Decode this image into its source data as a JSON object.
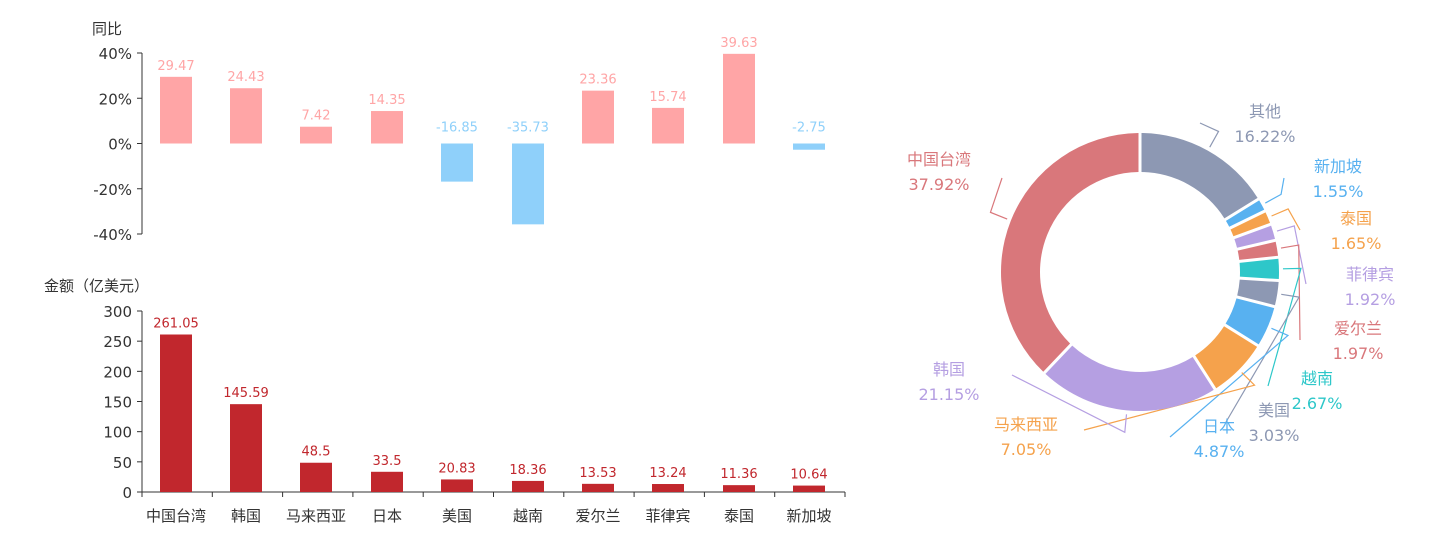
{
  "colors": {
    "pos": "#ffa5a6",
    "neg": "#8fd0fa",
    "bar": "#c1272d",
    "axis": "#333333",
    "label": "#333333"
  },
  "chart_data": [
    {
      "type": "bar",
      "title": "",
      "ylabel": "同比",
      "categories": [
        "中国台湾",
        "韩国",
        "马来西亚",
        "日本",
        "美国",
        "越南",
        "爱尔兰",
        "菲律宾",
        "泰国",
        "新加坡"
      ],
      "values": [
        29.47,
        24.43,
        7.42,
        14.35,
        -16.85,
        -35.73,
        23.36,
        15.74,
        39.63,
        -2.75
      ],
      "value_labels": [
        "29.47",
        "24.43",
        "7.42",
        "14.35",
        "-16.85",
        "-35.73",
        "23.36",
        "15.74",
        "39.63",
        "-2.75"
      ],
      "ylim": [
        -40,
        40
      ],
      "yticks": [
        40,
        20,
        0,
        -20,
        -40
      ],
      "ytick_labels": [
        "40%",
        "20%",
        "0%",
        "-20%",
        "-40%"
      ],
      "grid": false
    },
    {
      "type": "bar",
      "title": "",
      "ylabel": "金额（亿美元）",
      "categories": [
        "中国台湾",
        "韩国",
        "马来西亚",
        "日本",
        "美国",
        "越南",
        "爱尔兰",
        "菲律宾",
        "泰国",
        "新加坡"
      ],
      "values": [
        261.05,
        145.59,
        48.5,
        33.5,
        20.83,
        18.36,
        13.53,
        13.24,
        11.36,
        10.64
      ],
      "value_labels": [
        "261.05",
        "145.59",
        "48.5",
        "33.5",
        "20.83",
        "18.36",
        "13.53",
        "13.24",
        "11.36",
        "10.64"
      ],
      "ylim": [
        0,
        300
      ],
      "yticks": [
        300,
        250,
        200,
        150,
        100,
        50,
        0
      ],
      "ytick_labels": [
        "300",
        "250",
        "200",
        "150",
        "100",
        "50",
        "0"
      ],
      "grid": false
    },
    {
      "type": "pie",
      "title": "",
      "slices": [
        {
          "name": "其他",
          "value": 16.22,
          "label": "16.22%",
          "color": "#8d98b3"
        },
        {
          "name": "新加坡",
          "value": 1.55,
          "label": "1.55%",
          "color": "#58b1f0"
        },
        {
          "name": "泰国",
          "value": 1.65,
          "label": "1.65%",
          "color": "#f5a24c"
        },
        {
          "name": "菲律宾",
          "value": 1.92,
          "label": "1.92%",
          "color": "#b59fe2"
        },
        {
          "name": "爱尔兰",
          "value": 1.97,
          "label": "1.97%",
          "color": "#d9777b"
        },
        {
          "name": "越南",
          "value": 2.67,
          "label": "2.67%",
          "color": "#2ec7c9"
        },
        {
          "name": "美国",
          "value": 3.03,
          "label": "3.03%",
          "color": "#8d98b3"
        },
        {
          "name": "日本",
          "value": 4.87,
          "label": "4.87%",
          "color": "#58b1f0"
        },
        {
          "name": "马来西亚",
          "value": 7.05,
          "label": "7.05%",
          "color": "#f5a24c"
        },
        {
          "name": "韩国",
          "value": 21.15,
          "label": "21.15%",
          "color": "#b59fe2"
        },
        {
          "name": "中国台湾",
          "value": 37.92,
          "label": "37.92%",
          "color": "#d9777b"
        }
      ]
    }
  ]
}
